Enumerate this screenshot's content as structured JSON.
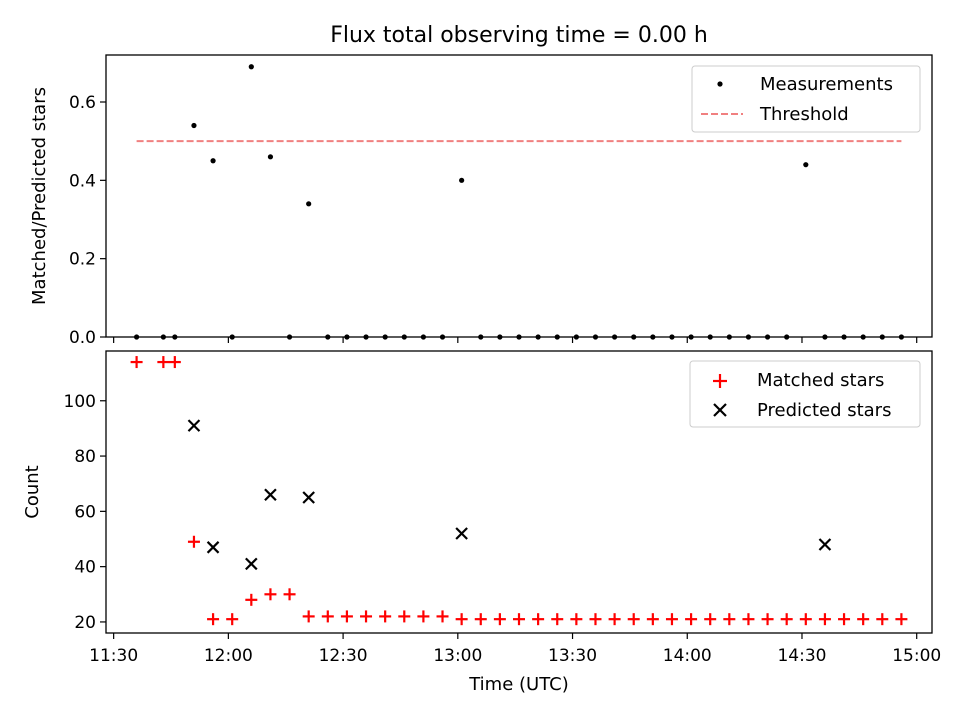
{
  "title": "Flux total observing time = 0.00 h",
  "colors": {
    "measurement": "#000000",
    "threshold": "#f08080",
    "matched": "#ff0000",
    "predicted": "#000000"
  },
  "chart_data": [
    {
      "type": "scatter",
      "ylabel": "Matched/Predicted stars",
      "ylim": [
        0,
        0.72
      ],
      "yticks": [
        "0.0",
        "0.2",
        "0.4",
        "0.6"
      ],
      "xlim_minutes": [
        688,
        904
      ],
      "legend_position": "top-right",
      "legend": [
        "Measurements",
        "Threshold"
      ],
      "threshold": {
        "value": 0.5,
        "x_start": "11:36",
        "x_end": "14:56"
      },
      "series": [
        {
          "name": "Measurements",
          "marker": "dot",
          "x": [
            "11:36",
            "11:43",
            "11:46",
            "11:51",
            "11:56",
            "12:01",
            "12:06",
            "12:11",
            "12:16",
            "12:21",
            "12:26",
            "12:31",
            "12:36",
            "12:41",
            "12:46",
            "12:51",
            "12:56",
            "13:01",
            "13:06",
            "13:11",
            "13:16",
            "13:21",
            "13:26",
            "13:31",
            "13:36",
            "13:41",
            "13:46",
            "13:51",
            "13:56",
            "14:01",
            "14:06",
            "14:11",
            "14:16",
            "14:21",
            "14:26",
            "14:31",
            "14:36",
            "14:41",
            "14:46",
            "14:51",
            "14:56"
          ],
          "values": [
            0,
            0,
            0,
            0.54,
            0.45,
            0,
            0.69,
            0.46,
            0,
            0.34,
            0,
            0,
            0,
            0,
            0,
            0,
            0,
            0.4,
            0,
            0,
            0,
            0,
            0,
            0,
            0,
            0,
            0,
            0,
            0,
            0,
            0,
            0,
            0,
            0,
            0,
            0.44,
            0,
            0,
            0,
            0,
            0
          ]
        }
      ]
    },
    {
      "type": "scatter",
      "ylabel": "Count",
      "xlabel": "Time (UTC)",
      "ylim": [
        16,
        118
      ],
      "yticks": [
        "20",
        "40",
        "60",
        "80",
        "100"
      ],
      "xticks": [
        "11:30",
        "12:00",
        "12:30",
        "13:00",
        "13:30",
        "14:00",
        "14:30",
        "15:00"
      ],
      "xlim_minutes": [
        688,
        904
      ],
      "legend_position": "top-right",
      "legend": [
        "Matched stars",
        "Predicted stars"
      ],
      "series": [
        {
          "name": "Matched stars",
          "marker": "plus",
          "x": [
            "11:36",
            "11:43",
            "11:46",
            "11:51",
            "11:56",
            "12:01",
            "12:06",
            "12:11",
            "12:16",
            "12:21",
            "12:26",
            "12:31",
            "12:36",
            "12:41",
            "12:46",
            "12:51",
            "12:56",
            "13:01",
            "13:06",
            "13:11",
            "13:16",
            "13:21",
            "13:26",
            "13:31",
            "13:36",
            "13:41",
            "13:46",
            "13:51",
            "13:56",
            "14:01",
            "14:06",
            "14:11",
            "14:16",
            "14:21",
            "14:26",
            "14:31",
            "14:36",
            "14:41",
            "14:46",
            "14:51",
            "14:56"
          ],
          "values": [
            114,
            114,
            114,
            49,
            21,
            21,
            28,
            30,
            30,
            22,
            22,
            22,
            22,
            22,
            22,
            22,
            22,
            21,
            21,
            21,
            21,
            21,
            21,
            21,
            21,
            21,
            21,
            21,
            21,
            21,
            21,
            21,
            21,
            21,
            21,
            21,
            21,
            21,
            21,
            21,
            21
          ]
        },
        {
          "name": "Predicted stars",
          "marker": "x",
          "x": [
            "11:51",
            "11:56",
            "12:06",
            "12:11",
            "12:21",
            "13:01",
            "14:36"
          ],
          "values": [
            91,
            47,
            41,
            66,
            65,
            52,
            48
          ]
        }
      ]
    }
  ]
}
